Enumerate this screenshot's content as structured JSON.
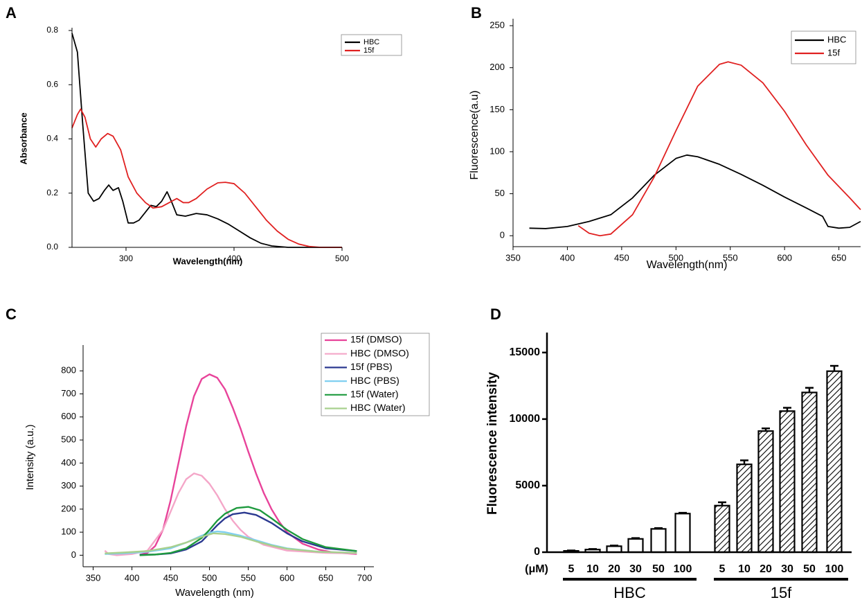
{
  "chart_data": [
    {
      "type": "line",
      "panel": "A",
      "xlabel": "Wavelength(nm)",
      "ylabel": "Absorbance",
      "xlim": [
        250,
        500
      ],
      "xticks": [
        300,
        400,
        500
      ],
      "ylim": [
        0,
        0.8
      ],
      "yticks": [
        {
          "value": 0,
          "label": "0.0"
        },
        0.2,
        0.4,
        0.6,
        0.8
      ],
      "series": [
        {
          "name": "HBC",
          "color": "#000000",
          "x": [
            250,
            255,
            260,
            265,
            270,
            275,
            280,
            284,
            288,
            293,
            297,
            302,
            307,
            312,
            318,
            323,
            328,
            333,
            338,
            342,
            347,
            355,
            365,
            375,
            385,
            395,
            405,
            415,
            425,
            435,
            450,
            500
          ],
          "values": [
            0.79,
            0.72,
            0.45,
            0.2,
            0.17,
            0.18,
            0.21,
            0.23,
            0.21,
            0.22,
            0.17,
            0.09,
            0.09,
            0.1,
            0.13,
            0.155,
            0.15,
            0.17,
            0.205,
            0.17,
            0.12,
            0.115,
            0.125,
            0.12,
            0.105,
            0.085,
            0.06,
            0.035,
            0.015,
            0.005,
            0,
            0
          ]
        },
        {
          "name": "15f",
          "color": "#e02020",
          "x": [
            250,
            255,
            258,
            262,
            267,
            272,
            277,
            283,
            288,
            295,
            302,
            310,
            318,
            325,
            333,
            340,
            347,
            353,
            358,
            365,
            375,
            385,
            392,
            400,
            410,
            420,
            430,
            440,
            450,
            460,
            470,
            480,
            500
          ],
          "values": [
            0.44,
            0.49,
            0.51,
            0.48,
            0.4,
            0.37,
            0.4,
            0.42,
            0.41,
            0.36,
            0.26,
            0.2,
            0.165,
            0.145,
            0.15,
            0.165,
            0.18,
            0.165,
            0.165,
            0.18,
            0.215,
            0.238,
            0.24,
            0.235,
            0.2,
            0.15,
            0.1,
            0.06,
            0.03,
            0.012,
            0.003,
            0,
            0
          ]
        }
      ]
    },
    {
      "type": "line",
      "panel": "B",
      "xlabel": "Wavelength(nm)",
      "ylabel": "Fluorescence(a.u)",
      "xlim": [
        350,
        670
      ],
      "xticks": [
        350,
        400,
        450,
        500,
        550,
        600,
        650
      ],
      "ylim": [
        -13,
        255
      ],
      "yticks": [
        0,
        50,
        100,
        150,
        200,
        250
      ],
      "series": [
        {
          "name": "HBC",
          "color": "#000000",
          "x": [
            365,
            380,
            400,
            420,
            440,
            460,
            480,
            500,
            510,
            520,
            540,
            560,
            580,
            600,
            620,
            635,
            640,
            650,
            660,
            670
          ],
          "values": [
            9,
            8.5,
            11,
            17,
            25,
            45,
            72,
            92,
            96,
            94,
            85,
            73,
            60,
            46,
            33,
            23,
            11,
            9,
            10,
            17
          ]
        },
        {
          "name": "15f",
          "color": "#e02020",
          "x": [
            410,
            420,
            430,
            440,
            460,
            480,
            500,
            520,
            540,
            548,
            560,
            580,
            600,
            620,
            640,
            660,
            670
          ],
          "values": [
            12,
            3,
            0,
            2,
            25,
            70,
            125,
            178,
            204,
            207,
            203,
            182,
            148,
            108,
            72,
            45,
            31
          ]
        }
      ]
    },
    {
      "type": "line",
      "panel": "C",
      "xlabel": "Wavelength (nm)",
      "ylabel": "Intensity (a.u.)",
      "xlim": [
        337,
        712
      ],
      "xticks": [
        350,
        400,
        450,
        500,
        550,
        600,
        650,
        700
      ],
      "ylim": [
        -50,
        900
      ],
      "yticks": [
        0,
        100,
        200,
        300,
        400,
        500,
        600,
        700,
        800
      ],
      "series": [
        {
          "name": "15f (DMSO)",
          "color": "#e8439a",
          "x": [
            410,
            420,
            430,
            440,
            450,
            460,
            470,
            480,
            490,
            500,
            510,
            520,
            530,
            540,
            550,
            560,
            570,
            580,
            590,
            600,
            620,
            640,
            660,
            690
          ],
          "values": [
            2,
            10,
            40,
            110,
            240,
            400,
            560,
            690,
            765,
            785,
            770,
            720,
            640,
            550,
            450,
            355,
            270,
            200,
            145,
            100,
            50,
            25,
            12,
            5
          ]
        },
        {
          "name": "HBC (DMSO)",
          "color": "#f4a6c8",
          "x": [
            365,
            370,
            380,
            400,
            420,
            440,
            450,
            460,
            470,
            480,
            490,
            500,
            510,
            520,
            530,
            540,
            550,
            570,
            600,
            650,
            690
          ],
          "values": [
            20,
            5,
            0,
            5,
            20,
            110,
            190,
            270,
            330,
            355,
            345,
            310,
            260,
            200,
            150,
            110,
            80,
            45,
            20,
            10,
            8
          ]
        },
        {
          "name": "15f (PBS)",
          "color": "#2b3990",
          "x": [
            410,
            430,
            450,
            470,
            490,
            500,
            510,
            520,
            530,
            545,
            560,
            580,
            600,
            620,
            650,
            690
          ],
          "values": [
            2,
            3,
            8,
            25,
            60,
            95,
            130,
            160,
            178,
            185,
            175,
            140,
            95,
            60,
            30,
            18
          ]
        },
        {
          "name": "HBC (PBS)",
          "color": "#7fcff0",
          "x": [
            365,
            390,
            420,
            450,
            470,
            490,
            500,
            510,
            520,
            540,
            560,
            580,
            600,
            640,
            690
          ],
          "values": [
            5,
            8,
            15,
            30,
            55,
            85,
            98,
            103,
            100,
            85,
            65,
            45,
            30,
            15,
            10
          ]
        },
        {
          "name": "15f (Water)",
          "color": "#1e9a3e",
          "x": [
            410,
            430,
            450,
            470,
            490,
            500,
            510,
            520,
            535,
            550,
            565,
            580,
            600,
            620,
            650,
            690
          ],
          "values": [
            0,
            3,
            10,
            30,
            75,
            110,
            150,
            180,
            205,
            210,
            195,
            160,
            110,
            70,
            35,
            18
          ]
        },
        {
          "name": "HBC (Water)",
          "color": "#a8d08d",
          "x": [
            365,
            390,
            420,
            450,
            470,
            490,
            505,
            520,
            540,
            560,
            580,
            600,
            640,
            690
          ],
          "values": [
            8,
            12,
            18,
            35,
            55,
            80,
            95,
            92,
            80,
            60,
            42,
            28,
            15,
            10
          ]
        }
      ]
    },
    {
      "type": "bar",
      "panel": "D",
      "ylabel": "Fluorescence intensity",
      "unit": "(μM)",
      "categories": [
        "5",
        "10",
        "20",
        "30",
        "50",
        "100"
      ],
      "ylim": [
        0,
        16500
      ],
      "yticks": [
        0,
        5000,
        10000,
        15000
      ],
      "series": [
        {
          "name": "HBC",
          "color": "#ffffff",
          "values": [
            100,
            200,
            450,
            1000,
            1750,
            2900
          ],
          "errors": [
            30,
            40,
            50,
            60,
            60,
            60
          ]
        },
        {
          "name": "15f",
          "color": "#000000",
          "pattern": "hatch",
          "values": [
            3500,
            6600,
            9100,
            10600,
            12000,
            13600
          ],
          "errors": [
            250,
            300,
            200,
            250,
            350,
            400
          ]
        }
      ]
    }
  ]
}
